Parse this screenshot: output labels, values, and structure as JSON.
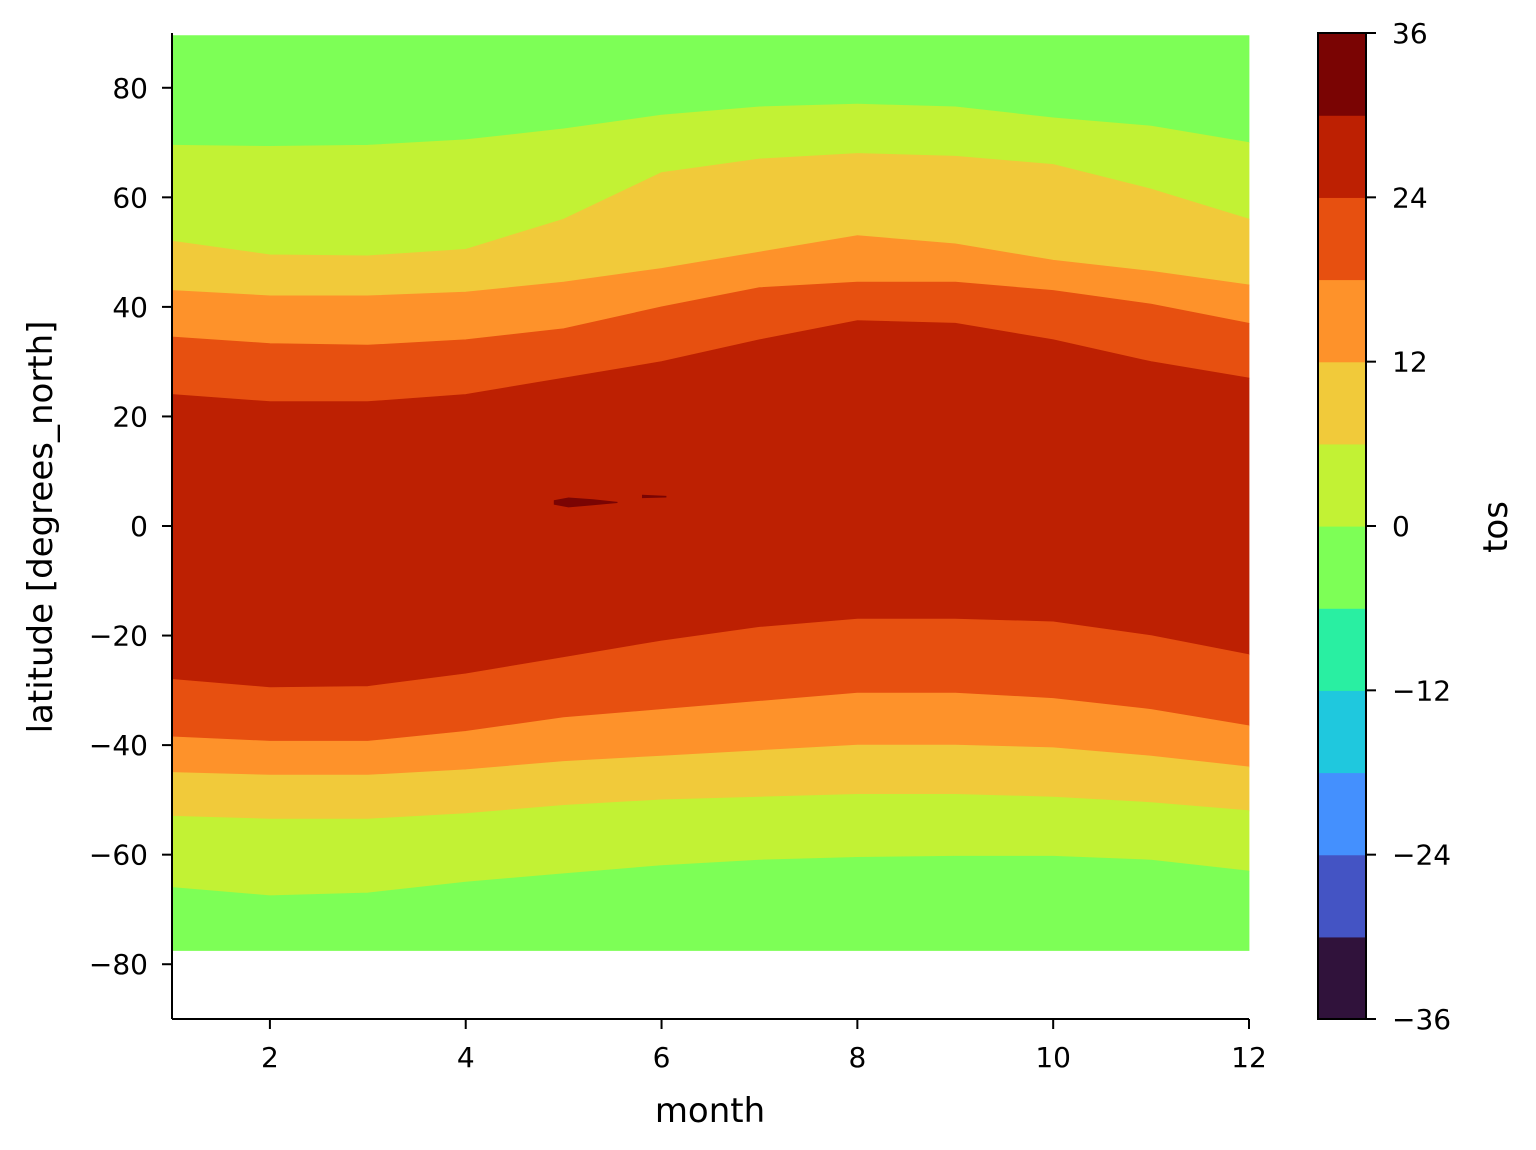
{
  "chart_data": {
    "type": "heatmap",
    "style": "filled-contour",
    "xlabel": "month",
    "ylabel": "latitude [degrees_north]",
    "colorbar_label": "tos",
    "xlim": [
      1,
      12
    ],
    "ylim": [
      -90,
      90
    ],
    "xticks": [
      2,
      4,
      6,
      8,
      10,
      12
    ],
    "yticks": [
      -80,
      -60,
      -40,
      -20,
      0,
      20,
      40,
      60,
      80
    ],
    "colorbar_ticks": [
      -36,
      -24,
      -12,
      0,
      12,
      24,
      36
    ],
    "levels": [
      -36,
      -30,
      -24,
      -18,
      -12,
      -6,
      0,
      6,
      12,
      18,
      24,
      30,
      36
    ],
    "colors": [
      "#30123b",
      "#4454c4",
      "#4490fe",
      "#1fc8de",
      "#29efa2",
      "#7dff56",
      "#c2f234",
      "#f1ca3a",
      "#fe922a",
      "#e75010",
      "#bd2002",
      "#7a0403"
    ],
    "data_lat_range": [
      -77.5,
      89.5
    ],
    "months": [
      1,
      2,
      3,
      4,
      5,
      6,
      7,
      8,
      9,
      10,
      11,
      12
    ],
    "contour_boundaries": [
      {
        "level": 0,
        "lat": [
          69.5,
          69.3,
          69.5,
          70.5,
          72.5,
          75,
          76.5,
          77,
          76.5,
          74.5,
          73,
          70
        ]
      },
      {
        "level": 6,
        "lat": [
          52,
          49.5,
          49.3,
          50.5,
          56,
          64.5,
          67,
          68,
          67.5,
          66,
          61.5,
          56
        ]
      },
      {
        "level": 12,
        "lat": [
          43,
          42,
          42,
          42.7,
          44.5,
          47,
          50,
          53,
          51.5,
          48.5,
          46.5,
          44
        ]
      },
      {
        "level": 18,
        "lat": [
          34.5,
          33.3,
          33,
          34,
          36,
          40,
          43.5,
          44.5,
          44.5,
          43,
          40.5,
          37
        ]
      },
      {
        "level": 24,
        "lat": [
          24,
          22.7,
          22.7,
          24,
          27,
          30,
          34,
          37.5,
          37,
          34,
          30,
          27
        ]
      },
      {
        "level": 24,
        "lat": [
          -28,
          -29.5,
          -29.3,
          -27,
          -24,
          -21,
          -18.5,
          -17,
          -17,
          -17.5,
          -20,
          -23.5
        ]
      },
      {
        "level": 18,
        "lat": [
          -38.5,
          -39.3,
          -39.3,
          -37.5,
          -35,
          -33.5,
          -32,
          -30.5,
          -30.5,
          -31.5,
          -33.5,
          -36.5
        ]
      },
      {
        "level": 12,
        "lat": [
          -45,
          -45.5,
          -45.5,
          -44.5,
          -43,
          -42,
          -41,
          -40,
          -40,
          -40.5,
          -42,
          -44
        ]
      },
      {
        "level": 6,
        "lat": [
          -53,
          -53.5,
          -53.5,
          -52.5,
          -51,
          -50,
          -49.5,
          -49,
          -49,
          -49.5,
          -50.5,
          -52
        ]
      },
      {
        "level": 0,
        "lat": [
          -66,
          -67.5,
          -67,
          -65,
          -63.5,
          -62,
          -61,
          -60.5,
          -60.3,
          -60.3,
          -61,
          -63
        ]
      }
    ],
    "warm_core_patches": [
      {
        "level": 30,
        "months": [
          4.9,
          5.05,
          5.3,
          5.55
        ],
        "lat_upper": [
          4.7,
          5.2,
          4.9,
          4.4
        ],
        "lat_lower": [
          3.9,
          3.4,
          3.8,
          4.2
        ]
      },
      {
        "level": 30,
        "months": [
          5.8,
          6.05
        ],
        "lat_upper": [
          5.7,
          5.5
        ],
        "lat_lower": [
          5.1,
          5.2
        ]
      }
    ]
  }
}
